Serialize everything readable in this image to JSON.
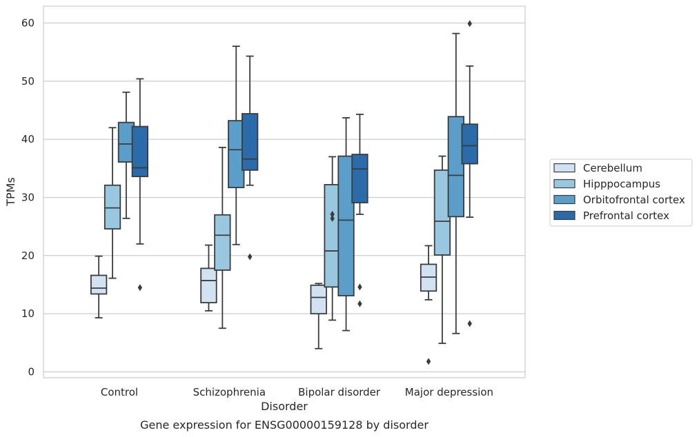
{
  "chart_data": {
    "type": "boxplot",
    "xlabel": "Disorder",
    "ylabel": "TPMs",
    "caption": "Gene expression for ENSG00000159128 by disorder",
    "ylim": [
      -1,
      63
    ],
    "yticks": [
      0,
      10,
      20,
      30,
      40,
      50,
      60
    ],
    "grid": "horizontal",
    "legend_position": "right",
    "categories": [
      "Control",
      "Schizophrenia",
      "Bipolar disorder",
      "Major depression"
    ],
    "series": [
      {
        "name": "Cerebellum",
        "color": "#d1e2f2",
        "boxes": [
          {
            "whislo": 9.3,
            "q1": 13.4,
            "med": 14.4,
            "q3": 16.6,
            "whishi": 19.9,
            "fliers": []
          },
          {
            "whislo": 10.5,
            "q1": 11.9,
            "med": 15.7,
            "q3": 17.8,
            "whishi": 21.8,
            "fliers": []
          },
          {
            "whislo": 4.0,
            "q1": 10.0,
            "med": 12.8,
            "q3": 14.9,
            "whishi": 15.2,
            "fliers": []
          },
          {
            "whislo": 12.4,
            "q1": 13.9,
            "med": 16.3,
            "q3": 18.5,
            "whishi": 21.7,
            "fliers": [
              1.8
            ]
          }
        ]
      },
      {
        "name": "Hipppocampus",
        "color": "#9ac7e0",
        "boxes": [
          {
            "whislo": 16.1,
            "q1": 24.6,
            "med": 28.2,
            "q3": 32.1,
            "whishi": 42.0,
            "fliers": []
          },
          {
            "whislo": 7.5,
            "q1": 17.5,
            "med": 23.5,
            "q3": 27.0,
            "whishi": 38.6,
            "fliers": []
          },
          {
            "whislo": 8.9,
            "q1": 14.6,
            "med": 20.8,
            "q3": 32.2,
            "whishi": 37.0,
            "fliers": [
              26.4,
              27.1
            ]
          },
          {
            "whislo": 4.9,
            "q1": 20.1,
            "med": 25.9,
            "q3": 34.7,
            "whishi": 37.1,
            "fliers": []
          }
        ]
      },
      {
        "name": "Orbitofrontal cortex",
        "color": "#5a9ec9",
        "boxes": [
          {
            "whislo": 26.4,
            "q1": 36.1,
            "med": 39.2,
            "q3": 42.9,
            "whishi": 48.1,
            "fliers": []
          },
          {
            "whislo": 21.9,
            "q1": 31.7,
            "med": 38.2,
            "q3": 43.2,
            "whishi": 56.0,
            "fliers": []
          },
          {
            "whislo": 7.1,
            "q1": 13.1,
            "med": 26.1,
            "q3": 37.1,
            "whishi": 43.7,
            "fliers": []
          },
          {
            "whislo": 6.6,
            "q1": 26.7,
            "med": 33.8,
            "q3": 43.9,
            "whishi": 58.2,
            "fliers": []
          }
        ]
      },
      {
        "name": "Prefrontal cortex",
        "color": "#2b6ba9",
        "boxes": [
          {
            "whislo": 22.0,
            "q1": 33.6,
            "med": 35.1,
            "q3": 42.2,
            "whishi": 50.4,
            "fliers": [
              14.5
            ]
          },
          {
            "whislo": 32.1,
            "q1": 34.7,
            "med": 36.6,
            "q3": 44.4,
            "whishi": 54.3,
            "fliers": [
              19.8
            ]
          },
          {
            "whislo": 27.1,
            "q1": 29.1,
            "med": 34.9,
            "q3": 37.4,
            "whishi": 44.3,
            "fliers": [
              11.7,
              14.6
            ]
          },
          {
            "whislo": 26.6,
            "q1": 35.8,
            "med": 38.9,
            "q3": 42.6,
            "whishi": 52.6,
            "fliers": [
              8.3,
              59.9
            ]
          }
        ]
      }
    ]
  }
}
